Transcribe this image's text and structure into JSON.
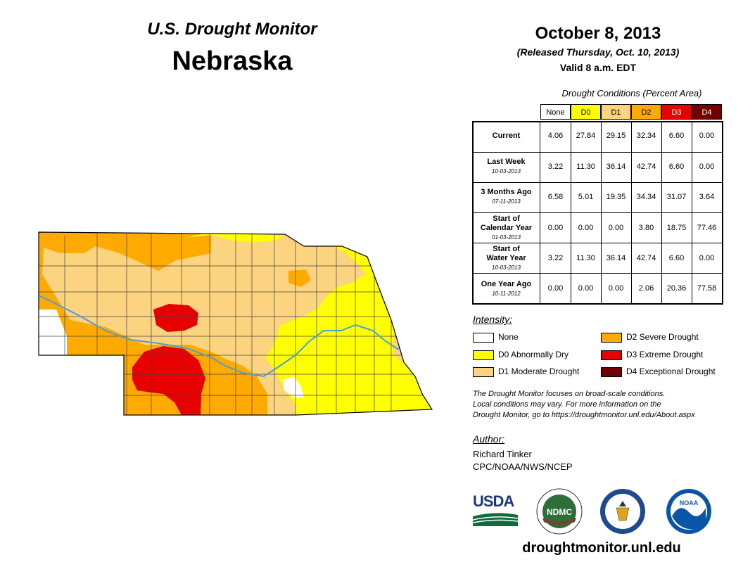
{
  "header": {
    "title": "U.S. Drought Monitor",
    "state": "Nebraska",
    "date": "October 8, 2013",
    "released": "(Released Thursday, Oct. 10, 2013)",
    "valid": "Valid 8 a.m. EDT"
  },
  "table": {
    "caption": "Drought Conditions (Percent Area)",
    "columns": [
      "None",
      "D0",
      "D1",
      "D2",
      "D3",
      "D4"
    ],
    "column_colors": [
      "#ffffff",
      "#ffff00",
      "#fcd37f",
      "#ffaa00",
      "#e60000",
      "#730000"
    ],
    "rows": [
      {
        "label": "Current",
        "label2": "",
        "date": "",
        "values": [
          "4.06",
          "27.84",
          "29.15",
          "32.34",
          "6.60",
          "0.00"
        ]
      },
      {
        "label": "Last Week",
        "label2": "",
        "date": "10-03-2013",
        "values": [
          "3.22",
          "11.30",
          "36.14",
          "42.74",
          "6.60",
          "0.00"
        ]
      },
      {
        "label": "3 Months Ago",
        "label2": "",
        "date": "07-11-2013",
        "values": [
          "6.58",
          "5.01",
          "19.35",
          "34.34",
          "31.07",
          "3.64"
        ]
      },
      {
        "label": "Start of",
        "label2": "Calendar Year",
        "date": "01-03-2013",
        "values": [
          "0.00",
          "0.00",
          "0.00",
          "3.80",
          "18.75",
          "77.46"
        ]
      },
      {
        "label": "Start of",
        "label2": "Water Year",
        "date": "10-03-2013",
        "values": [
          "3.22",
          "11.30",
          "36.14",
          "42.74",
          "6.60",
          "0.00"
        ]
      },
      {
        "label": "One Year Ago",
        "label2": "",
        "date": "10-11-2012",
        "values": [
          "0.00",
          "0.00",
          "0.00",
          "2.06",
          "20.36",
          "77.58"
        ]
      }
    ]
  },
  "legend": {
    "title": "Intensity:",
    "items": [
      {
        "label": "None",
        "color": "#ffffff"
      },
      {
        "label": "D0 Abnormally Dry",
        "color": "#ffff00"
      },
      {
        "label": "D1 Moderate Drought",
        "color": "#fcd37f"
      },
      {
        "label": "D2 Severe Drought",
        "color": "#ffaa00"
      },
      {
        "label": "D3 Extreme Drought",
        "color": "#e60000"
      },
      {
        "label": "D4 Exceptional Drought",
        "color": "#730000"
      }
    ]
  },
  "note": {
    "line1": "The Drought Monitor focuses on broad-scale conditions.",
    "line2": "Local conditions may vary. For more information on the",
    "line3": "Drought Monitor, go to https://droughtmonitor.unl.edu/About.aspx"
  },
  "author": {
    "title": "Author:",
    "name": "Richard Tinker",
    "org": "CPC/NOAA/NWS/NCEP"
  },
  "logos": {
    "usda": "USDA",
    "ndmc": "NDMC",
    "noaa": "NOAA"
  },
  "website": "droughtmonitor.unl.edu",
  "map_colors": {
    "river": "#4a9fd8",
    "county_line": "#444444"
  }
}
